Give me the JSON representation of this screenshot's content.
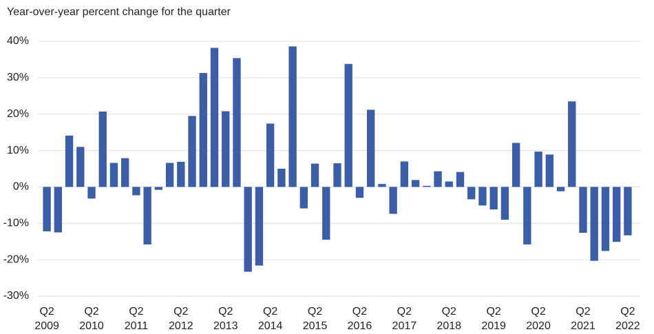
{
  "chart_data": {
    "type": "bar",
    "title": "Year-over-year percent change for the quarter",
    "categories": [
      "Q2 2009",
      null,
      null,
      null,
      "Q2 2010",
      null,
      null,
      null,
      "Q2 2011",
      null,
      null,
      null,
      "Q2 2012",
      null,
      null,
      null,
      "Q2 2013",
      null,
      null,
      null,
      "Q2 2014",
      null,
      null,
      null,
      "Q2 2015",
      null,
      null,
      null,
      "Q2 2016",
      null,
      null,
      null,
      "Q2 2017",
      null,
      null,
      null,
      "Q2 2018",
      null,
      null,
      null,
      "Q2 2019",
      null,
      null,
      null,
      "Q2 2020",
      null,
      null,
      null,
      "Q2 2021",
      null,
      null,
      null,
      "Q2 2022"
    ],
    "values": [
      -12.2,
      -12.5,
      14.1,
      11.0,
      -3.2,
      20.7,
      6.6,
      7.9,
      -2.3,
      -15.8,
      -0.8,
      6.6,
      6.9,
      19.5,
      31.3,
      38.2,
      20.8,
      35.4,
      -23.3,
      -21.6,
      17.4,
      5.0,
      38.6,
      -5.9,
      6.4,
      -14.5,
      6.5,
      33.8,
      -3.0,
      21.2,
      0.8,
      -7.4,
      7.0,
      1.9,
      0.3,
      4.3,
      1.5,
      4.1,
      -3.4,
      -5.1,
      -6.2,
      -9.0,
      12.1,
      -15.8,
      9.7,
      8.9,
      -1.2,
      23.5,
      -12.6,
      -20.3,
      -17.6,
      -15.1,
      -13.3
    ],
    "color": "#3a5fa8",
    "ylim": [
      -30,
      40
    ],
    "yticks": [
      {
        "value": -30,
        "label": "-30%"
      },
      {
        "value": -20,
        "label": "-20%"
      },
      {
        "value": -10,
        "label": "-10%"
      },
      {
        "value": 0,
        "label": "0%"
      },
      {
        "value": 10,
        "label": "10%"
      },
      {
        "value": 20,
        "label": "20%"
      },
      {
        "value": 30,
        "label": "30%"
      },
      {
        "value": 40,
        "label": "40%"
      }
    ],
    "grid": true
  }
}
